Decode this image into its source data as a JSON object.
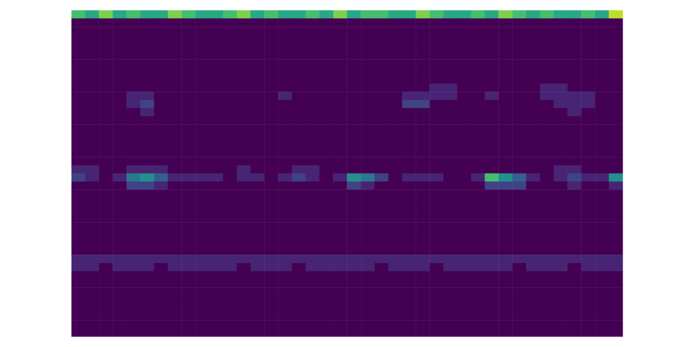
{
  "chart_data": {
    "type": "heatmap",
    "color": "viridis",
    "color_range": [
      0,
      10
    ],
    "tick_labels": false,
    "cells": [
      [
        7,
        6,
        8,
        6,
        7,
        6,
        6,
        8,
        7,
        6,
        6,
        7,
        8,
        6,
        7,
        6,
        6,
        7,
        6,
        8,
        6,
        7,
        7,
        6,
        6,
        8,
        7,
        6,
        6,
        7,
        6,
        8,
        7,
        6,
        7,
        6,
        6,
        7,
        6,
        9
      ],
      [
        0,
        0,
        0,
        0,
        0,
        0,
        0,
        0,
        0,
        0,
        0,
        0,
        0,
        0,
        0,
        0,
        0,
        0,
        0,
        0,
        0,
        0,
        0,
        0,
        0,
        0,
        0,
        0,
        0,
        0,
        0,
        0,
        0,
        0,
        0,
        0,
        0,
        0,
        0,
        0
      ],
      [
        0,
        0,
        0,
        0,
        0,
        0,
        0,
        0,
        0,
        0,
        0,
        0,
        0,
        0,
        0,
        0,
        0,
        0,
        0,
        0,
        0,
        0,
        0,
        0,
        0,
        0,
        0,
        0,
        0,
        0,
        0,
        0,
        0,
        0,
        0,
        0,
        0,
        0,
        0,
        0
      ],
      [
        0,
        0,
        0,
        0,
        0,
        0,
        0,
        0,
        0,
        0,
        0,
        0,
        0,
        0,
        0,
        0,
        0,
        0,
        0,
        0,
        0,
        0,
        0,
        0,
        0,
        0,
        0,
        0,
        0,
        0,
        0,
        0,
        0,
        0,
        0,
        0,
        0,
        0,
        0,
        0
      ],
      [
        0,
        0,
        0,
        0,
        0,
        0,
        0,
        0,
        0,
        0,
        0,
        0,
        0,
        0,
        0,
        0,
        0,
        0,
        0,
        0,
        0,
        0,
        0,
        0,
        0,
        0,
        0,
        0,
        0,
        0,
        0,
        0,
        0,
        0,
        0,
        0,
        0,
        0,
        0,
        0
      ],
      [
        0,
        0,
        0,
        0,
        0,
        0,
        0,
        0,
        0,
        0,
        0,
        0,
        0,
        0,
        0,
        0,
        0,
        0,
        0,
        0,
        0,
        0,
        0,
        0,
        0,
        0,
        0,
        0,
        0,
        0,
        0,
        0,
        0,
        0,
        0,
        0,
        0,
        0,
        0,
        0
      ],
      [
        0,
        0,
        0,
        0,
        0,
        0,
        0,
        0,
        0,
        0,
        0,
        0,
        0,
        0,
        0,
        0,
        0,
        0,
        0,
        0,
        0,
        0,
        0,
        0,
        0,
        0,
        0,
        0,
        0,
        0,
        0,
        0,
        0,
        0,
        0,
        0,
        0,
        0,
        0,
        0
      ],
      [
        0,
        0,
        0,
        0,
        0,
        0,
        0,
        0,
        0,
        0,
        0,
        0,
        0,
        0,
        0,
        0,
        0,
        0,
        0,
        0,
        0,
        0,
        0,
        0,
        0,
        0,
        0,
        0,
        0,
        0,
        0,
        0,
        0,
        0,
        0,
        0,
        0,
        0,
        0,
        0
      ],
      [
        0,
        0,
        0,
        0,
        0,
        0,
        0,
        0,
        0,
        0,
        0,
        0,
        0,
        0,
        0,
        0,
        0,
        0,
        0,
        0,
        0,
        0,
        0,
        0,
        0,
        0,
        0,
        0,
        0,
        0,
        0,
        0,
        0,
        0,
        0,
        0,
        0,
        0,
        0,
        0
      ],
      [
        0,
        0,
        0,
        0,
        0,
        0,
        0,
        0,
        0,
        0,
        0,
        0,
        0,
        0,
        0,
        0,
        0,
        0,
        0,
        0,
        0,
        0,
        0,
        0,
        0,
        0,
        1,
        1,
        0,
        0,
        0,
        0,
        0,
        0,
        1,
        1,
        0,
        0,
        0,
        0
      ],
      [
        0,
        0,
        0,
        0,
        1,
        1,
        0,
        0,
        0,
        0,
        0,
        0,
        0,
        0,
        0,
        1,
        0,
        0,
        0,
        0,
        0,
        0,
        0,
        0,
        1,
        1,
        1,
        1,
        0,
        0,
        1,
        0,
        0,
        0,
        1,
        1,
        1,
        1,
        0,
        0
      ],
      [
        0,
        0,
        0,
        0,
        1,
        2,
        0,
        0,
        0,
        0,
        0,
        0,
        0,
        0,
        0,
        0,
        0,
        0,
        0,
        0,
        0,
        0,
        0,
        0,
        2,
        2,
        0,
        0,
        0,
        0,
        0,
        0,
        0,
        0,
        0,
        1,
        1,
        1,
        0,
        0
      ],
      [
        0,
        0,
        0,
        0,
        0,
        1,
        0,
        0,
        0,
        0,
        0,
        0,
        0,
        0,
        0,
        0,
        0,
        0,
        0,
        0,
        0,
        0,
        0,
        0,
        0,
        0,
        0,
        0,
        0,
        0,
        0,
        0,
        0,
        0,
        0,
        0,
        1,
        0,
        0,
        0
      ],
      [
        0,
        0,
        0,
        0,
        0,
        0,
        0,
        0,
        0,
        0,
        0,
        0,
        0,
        0,
        0,
        0,
        0,
        0,
        0,
        0,
        0,
        0,
        0,
        0,
        0,
        0,
        0,
        0,
        0,
        0,
        0,
        0,
        0,
        0,
        0,
        0,
        0,
        0,
        0,
        0
      ],
      [
        0,
        0,
        0,
        0,
        0,
        0,
        0,
        0,
        0,
        0,
        0,
        0,
        0,
        0,
        0,
        0,
        0,
        0,
        0,
        0,
        0,
        0,
        0,
        0,
        0,
        0,
        0,
        0,
        0,
        0,
        0,
        0,
        0,
        0,
        0,
        0,
        0,
        0,
        0,
        0
      ],
      [
        0,
        0,
        0,
        0,
        0,
        0,
        0,
        0,
        0,
        0,
        0,
        0,
        0,
        0,
        0,
        0,
        0,
        0,
        0,
        0,
        0,
        0,
        0,
        0,
        0,
        0,
        0,
        0,
        0,
        0,
        0,
        0,
        0,
        0,
        0,
        0,
        0,
        0,
        0,
        0
      ],
      [
        0,
        0,
        0,
        0,
        0,
        0,
        0,
        0,
        0,
        0,
        0,
        0,
        0,
        0,
        0,
        0,
        0,
        0,
        0,
        0,
        0,
        0,
        0,
        0,
        0,
        0,
        0,
        0,
        0,
        0,
        0,
        0,
        0,
        0,
        0,
        0,
        0,
        0,
        0,
        0
      ],
      [
        0,
        0,
        0,
        0,
        0,
        0,
        0,
        0,
        0,
        0,
        0,
        0,
        0,
        0,
        0,
        0,
        0,
        0,
        0,
        0,
        0,
        0,
        0,
        0,
        0,
        0,
        0,
        0,
        0,
        0,
        0,
        0,
        0,
        0,
        0,
        0,
        0,
        0,
        0,
        0
      ],
      [
        0,
        0,
        0,
        0,
        0,
        0,
        0,
        0,
        0,
        0,
        0,
        0,
        0,
        0,
        0,
        0,
        0,
        0,
        0,
        0,
        0,
        0,
        0,
        0,
        0,
        0,
        0,
        0,
        0,
        0,
        0,
        0,
        0,
        0,
        0,
        0,
        0,
        0,
        0,
        0
      ],
      [
        1,
        1,
        0,
        0,
        1,
        1,
        1,
        0,
        0,
        0,
        0,
        0,
        1,
        0,
        0,
        0,
        1,
        1,
        0,
        0,
        0,
        0,
        0,
        0,
        0,
        0,
        0,
        0,
        0,
        0,
        0,
        0,
        0,
        0,
        0,
        1,
        1,
        0,
        0,
        0
      ],
      [
        2,
        1,
        0,
        1,
        4,
        5,
        3,
        1,
        1,
        1,
        1,
        0,
        1,
        1,
        0,
        1,
        2,
        1,
        0,
        1,
        5,
        4,
        2,
        0,
        1,
        1,
        1,
        0,
        0,
        1,
        7,
        5,
        3,
        1,
        0,
        1,
        2,
        1,
        1,
        5
      ],
      [
        0,
        0,
        0,
        0,
        2,
        2,
        1,
        0,
        0,
        0,
        0,
        0,
        0,
        0,
        0,
        0,
        0,
        0,
        0,
        0,
        2,
        1,
        0,
        0,
        0,
        0,
        0,
        0,
        0,
        0,
        2,
        2,
        2,
        0,
        0,
        0,
        1,
        0,
        0,
        1
      ],
      [
        0,
        0,
        0,
        0,
        0,
        0,
        0,
        0,
        0,
        0,
        0,
        0,
        0,
        0,
        0,
        0,
        0,
        0,
        0,
        0,
        0,
        0,
        0,
        0,
        0,
        0,
        0,
        0,
        0,
        0,
        0,
        0,
        0,
        0,
        0,
        0,
        0,
        0,
        0,
        0
      ],
      [
        0,
        0,
        0,
        0,
        0,
        0,
        0,
        0,
        0,
        0,
        0,
        0,
        0,
        0,
        0,
        0,
        0,
        0,
        0,
        0,
        0,
        0,
        0,
        0,
        0,
        0,
        0,
        0,
        0,
        0,
        0,
        0,
        0,
        0,
        0,
        0,
        0,
        0,
        0,
        0
      ],
      [
        0,
        0,
        0,
        0,
        0,
        0,
        0,
        0,
        0,
        0,
        0,
        0,
        0,
        0,
        0,
        0,
        0,
        0,
        0,
        0,
        0,
        0,
        0,
        0,
        0,
        0,
        0,
        0,
        0,
        0,
        0,
        0,
        0,
        0,
        0,
        0,
        0,
        0,
        0,
        0
      ],
      [
        0,
        0,
        0,
        0,
        0,
        0,
        0,
        0,
        0,
        0,
        0,
        0,
        0,
        0,
        0,
        0,
        0,
        0,
        0,
        0,
        0,
        0,
        0,
        0,
        0,
        0,
        0,
        0,
        0,
        0,
        0,
        0,
        0,
        0,
        0,
        0,
        0,
        0,
        0,
        0
      ],
      [
        0,
        0,
        0,
        0,
        0,
        0,
        0,
        0,
        0,
        0,
        0,
        0,
        0,
        0,
        0,
        0,
        0,
        0,
        0,
        0,
        0,
        0,
        0,
        0,
        0,
        0,
        0,
        0,
        0,
        0,
        0,
        0,
        0,
        0,
        0,
        0,
        0,
        0,
        0,
        0
      ],
      [
        0,
        0,
        0,
        0,
        0,
        0,
        0,
        0,
        0,
        0,
        0,
        0,
        0,
        0,
        0,
        0,
        0,
        0,
        0,
        0,
        0,
        0,
        0,
        0,
        0,
        0,
        0,
        0,
        0,
        0,
        0,
        0,
        0,
        0,
        0,
        0,
        0,
        0,
        0,
        0
      ],
      [
        0,
        0,
        0,
        0,
        0,
        0,
        0,
        0,
        0,
        0,
        0,
        0,
        0,
        0,
        0,
        0,
        0,
        0,
        0,
        0,
        0,
        0,
        0,
        0,
        0,
        0,
        0,
        0,
        0,
        0,
        0,
        0,
        0,
        0,
        0,
        0,
        0,
        0,
        0,
        0
      ],
      [
        0,
        0,
        0,
        0,
        0,
        0,
        0,
        0,
        0,
        0,
        0,
        0,
        0,
        0,
        0,
        0,
        0,
        0,
        0,
        0,
        0,
        0,
        0,
        0,
        0,
        0,
        0,
        0,
        0,
        0,
        0,
        0,
        0,
        0,
        0,
        0,
        0,
        0,
        0,
        0
      ],
      [
        1,
        1,
        1,
        1,
        1,
        1,
        1,
        1,
        1,
        1,
        1,
        1,
        1,
        1,
        1,
        1,
        1,
        1,
        1,
        1,
        1,
        1,
        1,
        1,
        1,
        1,
        1,
        1,
        1,
        1,
        1,
        1,
        1,
        1,
        1,
        1,
        1,
        1,
        1,
        1
      ],
      [
        1,
        1,
        0,
        1,
        1,
        1,
        0,
        1,
        1,
        1,
        1,
        1,
        0,
        1,
        1,
        1,
        0,
        1,
        1,
        1,
        1,
        1,
        0,
        1,
        1,
        1,
        0,
        1,
        1,
        1,
        1,
        1,
        0,
        1,
        1,
        1,
        0,
        1,
        1,
        1
      ],
      [
        0,
        0,
        0,
        0,
        0,
        0,
        0,
        0,
        0,
        0,
        0,
        0,
        0,
        0,
        0,
        0,
        0,
        0,
        0,
        0,
        0,
        0,
        0,
        0,
        0,
        0,
        0,
        0,
        0,
        0,
        0,
        0,
        0,
        0,
        0,
        0,
        0,
        0,
        0,
        0
      ],
      [
        0,
        0,
        0,
        0,
        0,
        0,
        0,
        0,
        0,
        0,
        0,
        0,
        0,
        0,
        0,
        0,
        0,
        0,
        0,
        0,
        0,
        0,
        0,
        0,
        0,
        0,
        0,
        0,
        0,
        0,
        0,
        0,
        0,
        0,
        0,
        0,
        0,
        0,
        0,
        0
      ],
      [
        0,
        0,
        0,
        0,
        0,
        0,
        0,
        0,
        0,
        0,
        0,
        0,
        0,
        0,
        0,
        0,
        0,
        0,
        0,
        0,
        0,
        0,
        0,
        0,
        0,
        0,
        0,
        0,
        0,
        0,
        0,
        0,
        0,
        0,
        0,
        0,
        0,
        0,
        0,
        0
      ],
      [
        0,
        0,
        0,
        0,
        0,
        0,
        0,
        0,
        0,
        0,
        0,
        0,
        0,
        0,
        0,
        0,
        0,
        0,
        0,
        0,
        0,
        0,
        0,
        0,
        0,
        0,
        0,
        0,
        0,
        0,
        0,
        0,
        0,
        0,
        0,
        0,
        0,
        0,
        0,
        0
      ],
      [
        0,
        0,
        0,
        0,
        0,
        0,
        0,
        0,
        0,
        0,
        0,
        0,
        0,
        0,
        0,
        0,
        0,
        0,
        0,
        0,
        0,
        0,
        0,
        0,
        0,
        0,
        0,
        0,
        0,
        0,
        0,
        0,
        0,
        0,
        0,
        0,
        0,
        0,
        0,
        0
      ],
      [
        0,
        0,
        0,
        0,
        0,
        0,
        0,
        0,
        0,
        0,
        0,
        0,
        0,
        0,
        0,
        0,
        0,
        0,
        0,
        0,
        0,
        0,
        0,
        0,
        0,
        0,
        0,
        0,
        0,
        0,
        0,
        0,
        0,
        0,
        0,
        0,
        0,
        0,
        0,
        0
      ],
      [
        0,
        0,
        0,
        0,
        0,
        0,
        0,
        0,
        0,
        0,
        0,
        0,
        0,
        0,
        0,
        0,
        0,
        0,
        0,
        0,
        0,
        0,
        0,
        0,
        0,
        0,
        0,
        0,
        0,
        0,
        0,
        0,
        0,
        0,
        0,
        0,
        0,
        0,
        0,
        0
      ],
      [
        0,
        0,
        0,
        0,
        0,
        0,
        0,
        0,
        0,
        0,
        0,
        0,
        0,
        0,
        0,
        0,
        0,
        0,
        0,
        0,
        0,
        0,
        0,
        0,
        0,
        0,
        0,
        0,
        0,
        0,
        0,
        0,
        0,
        0,
        0,
        0,
        0,
        0,
        0,
        0
      ]
    ]
  }
}
